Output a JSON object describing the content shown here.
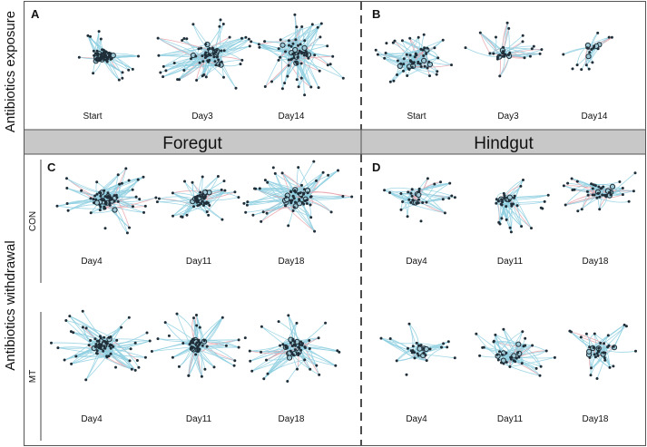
{
  "row_labels": {
    "top": "Antibiotics exposure",
    "bottom": "Antibiotics withdrawal"
  },
  "band": {
    "left": "Foregut",
    "right": "Hindgut"
  },
  "group_labels": {
    "con": "CON",
    "mt": "MT"
  },
  "panels": {
    "A": "A",
    "B": "B",
    "C": "C",
    "D": "D"
  },
  "days": {
    "A": [
      "Start",
      "Day3",
      "Day14"
    ],
    "B": [
      "Start",
      "Day3",
      "Day14"
    ],
    "C_con": [
      "Day4",
      "Day11",
      "Day18"
    ],
    "C_mt": [
      "Day4",
      "Day11",
      "Day18"
    ],
    "D_con": [
      "Day4",
      "Day11",
      "Day18"
    ],
    "D_mt": [
      "Day4",
      "Day11",
      "Day18"
    ]
  },
  "colors": {
    "positive_edge": "#8ecfe0",
    "negative_edge": "#e8a0a8",
    "node": "#1f2e38",
    "hub_ring": "#1f2e38",
    "band": "#c8c8c8"
  }
}
